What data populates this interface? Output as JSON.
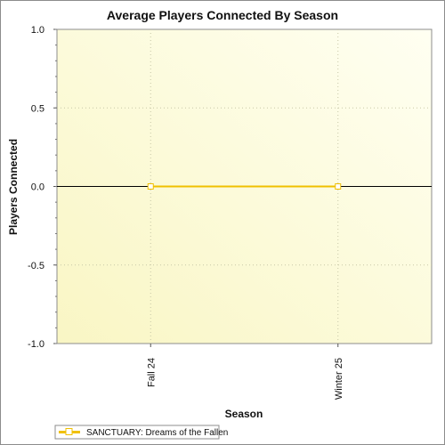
{
  "chart_data": {
    "type": "line",
    "title": "Average Players Connected By Season",
    "xlabel": "Season",
    "ylabel": "Players Connected",
    "categories": [
      "Fall 24",
      "Winter 25"
    ],
    "series": [
      {
        "name": "SANCTUARY: Dreams of the Fallen",
        "values": [
          0,
          0
        ],
        "color": "#f0c000"
      }
    ],
    "ylim": [
      -1.0,
      1.0
    ],
    "yticks": [
      "1.0",
      "0.5",
      "0.0",
      "-0.5",
      "-1.0"
    ],
    "ytick_values": [
      1.0,
      0.5,
      0.0,
      -0.5,
      -1.0
    ],
    "grid": true,
    "legend": "bottom-left"
  }
}
